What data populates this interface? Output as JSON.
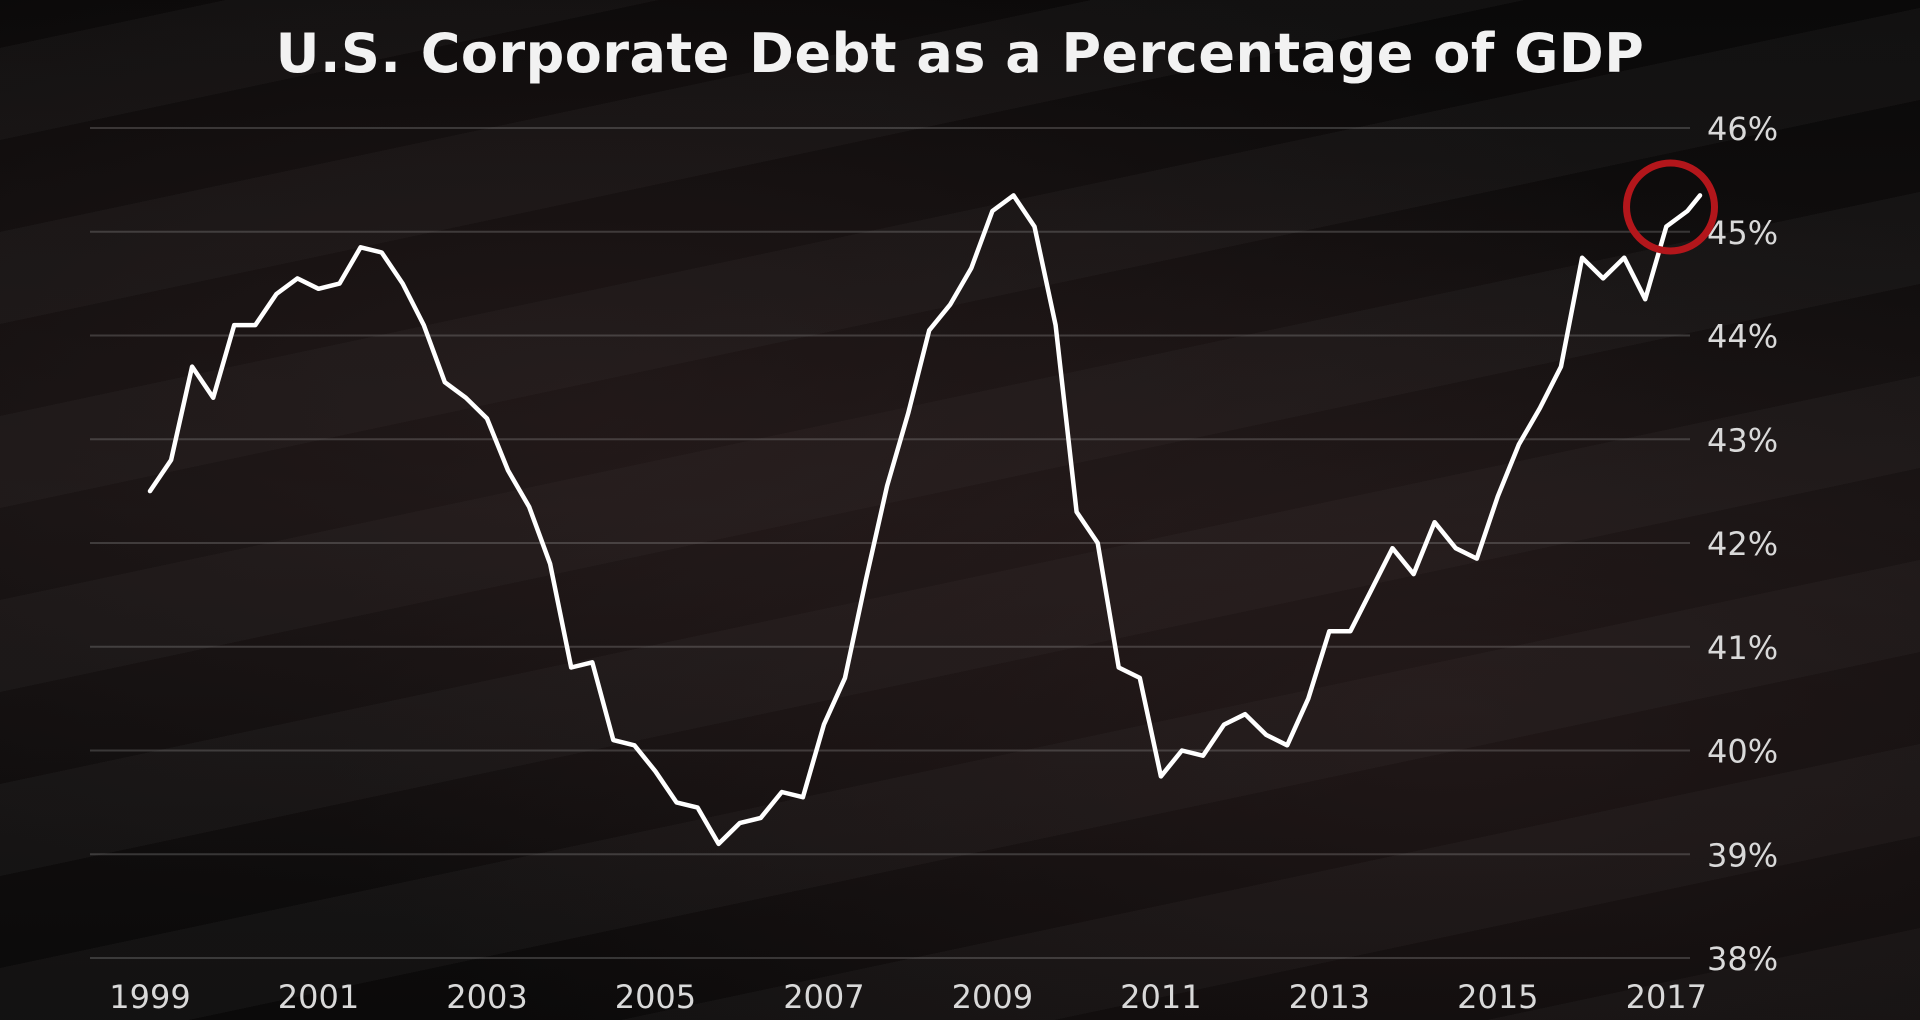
{
  "chart_data": {
    "type": "line",
    "title": "U.S. Corporate Debt as a Percentage of GDP",
    "xlabel": "",
    "ylabel": "",
    "xlim": [
      1999,
      2017.4
    ],
    "ylim": [
      38,
      46
    ],
    "x_ticks": [
      1999,
      2001,
      2003,
      2005,
      2007,
      2009,
      2011,
      2013,
      2015,
      2017
    ],
    "x_tick_labels": [
      "1999",
      "2001",
      "2003",
      "2005",
      "2007",
      "2009",
      "2011",
      "2013",
      "2015",
      "2017"
    ],
    "y_ticks": [
      38,
      39,
      40,
      41,
      42,
      43,
      44,
      45,
      46
    ],
    "y_tick_labels": [
      "38%",
      "39%",
      "40%",
      "41%",
      "42%",
      "43%",
      "44%",
      "45%",
      "46%"
    ],
    "y_axis_side": "right",
    "grid": "horizontal",
    "line_color": "#ffffff",
    "highlight_color": "#b3161b",
    "highlight": {
      "x": 2017.05,
      "y": 45.2
    },
    "series": [
      {
        "x": [
          1999.0,
          1999.25,
          1999.5,
          1999.75,
          2000.0,
          2000.25,
          2000.5,
          2000.75,
          2001.0,
          2001.25,
          2001.5,
          2001.75,
          2002.0,
          2002.25,
          2002.5,
          2002.75,
          2003.0,
          2003.25,
          2003.5,
          2003.75,
          2004.0,
          2004.25,
          2004.5,
          2004.75,
          2005.0,
          2005.25,
          2005.5,
          2005.75,
          2006.0,
          2006.25,
          2006.5,
          2006.75,
          2007.0,
          2007.25,
          2007.5,
          2007.75,
          2008.0,
          2008.25,
          2008.5,
          2008.75,
          2009.0,
          2009.25,
          2009.5,
          2009.75,
          2010.0,
          2010.25,
          2010.5,
          2010.75,
          2011.0,
          2011.25,
          2011.5,
          2011.75,
          2012.0,
          2012.25,
          2012.5,
          2012.75,
          2013.0,
          2013.25,
          2013.5,
          2013.75,
          2014.0,
          2014.25,
          2014.5,
          2014.75,
          2015.0,
          2015.25,
          2015.5,
          2015.75,
          2016.0,
          2016.25,
          2016.5,
          2016.75,
          2017.0,
          2017.25,
          2017.4
        ],
        "values": [
          42.5,
          42.8,
          43.7,
          43.4,
          44.1,
          44.1,
          44.4,
          44.55,
          44.45,
          44.5,
          44.85,
          44.8,
          44.5,
          44.1,
          43.55,
          43.4,
          43.2,
          42.7,
          42.35,
          41.8,
          40.8,
          40.85,
          40.1,
          40.05,
          39.8,
          39.5,
          39.45,
          39.1,
          39.3,
          39.35,
          39.6,
          39.55,
          40.25,
          40.7,
          41.65,
          42.55,
          43.25,
          44.05,
          44.3,
          44.65,
          45.2,
          45.35,
          45.05,
          44.1,
          42.3,
          42.0,
          40.8,
          40.7,
          39.75,
          40.0,
          39.95,
          40.25,
          40.35,
          40.15,
          40.05,
          40.5,
          41.15,
          41.15,
          41.55,
          41.95,
          41.7,
          42.2,
          41.95,
          41.85,
          42.45,
          42.95,
          43.3,
          43.7,
          44.75,
          44.55,
          44.75,
          44.35,
          45.05,
          45.2,
          45.35
        ]
      }
    ]
  }
}
